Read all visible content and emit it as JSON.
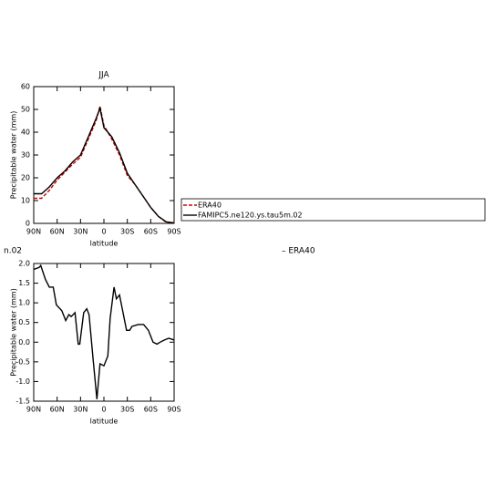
{
  "chart_data": [
    {
      "type": "line",
      "title": "JJA",
      "xlabel": "latitude",
      "ylabel": "Precipitable water (mm)",
      "xlim": [
        90,
        -90
      ],
      "xticks": [
        {
          "value": 90,
          "label": "90N"
        },
        {
          "value": 60,
          "label": "60N"
        },
        {
          "value": 30,
          "label": "30N"
        },
        0,
        {
          "value": -30,
          "label": "30S"
        },
        {
          "value": -60,
          "label": "60S"
        },
        {
          "value": -90,
          "label": "90S"
        }
      ],
      "ylim": [
        0,
        60
      ],
      "yticks": [
        0,
        10,
        20,
        30,
        40,
        50,
        60
      ],
      "x": [
        90,
        80,
        70,
        60,
        50,
        40,
        30,
        20,
        10,
        5,
        0,
        -5,
        -10,
        -20,
        -30,
        -40,
        -50,
        -60,
        -70,
        -80,
        -90
      ],
      "series": [
        {
          "name": "ERA40",
          "color": "#d00000",
          "dash": "4,2",
          "values": [
            11,
            11,
            14.5,
            19,
            22.5,
            26,
            29,
            37,
            45,
            51.5,
            43,
            40,
            37,
            30,
            21,
            17,
            12,
            7,
            3,
            0.5,
            0.2
          ]
        },
        {
          "name": "FAMIPC5.ne120.ys.tau5m.02",
          "color": "#000000",
          "values": [
            13,
            13,
            16,
            20,
            23,
            27,
            30,
            38,
            46,
            50.5,
            42,
            40,
            38,
            31,
            22,
            17,
            12,
            7,
            3,
            0.7,
            0.2
          ]
        }
      ]
    },
    {
      "type": "line",
      "xlabel": "latitude",
      "ylabel": "Precipitable water (mm)",
      "annotations": [
        "n.02",
        "– ERA40"
      ],
      "xlim": [
        90,
        -90
      ],
      "xticks": [
        {
          "value": 90,
          "label": "90N"
        },
        {
          "value": 60,
          "label": "60N"
        },
        {
          "value": 30,
          "label": "30N"
        },
        0,
        {
          "value": -30,
          "label": "30S"
        },
        {
          "value": -60,
          "label": "60S"
        },
        {
          "value": -90,
          "label": "90S"
        }
      ],
      "ylim": [
        -1.5,
        2.0
      ],
      "yticks": [
        {
          "value": -1.5,
          "label": "-1.5"
        },
        {
          "value": -1.0,
          "label": "-1.0"
        },
        {
          "value": -0.5,
          "label": "-0.5"
        },
        {
          "value": 0,
          "label": "0.0"
        },
        {
          "value": 0.5,
          "label": "0.5"
        },
        {
          "value": 1.0,
          "label": "1.0"
        },
        {
          "value": 1.5,
          "label": "1.5"
        },
        {
          "value": 2.0,
          "label": "2.0"
        }
      ],
      "x": [
        90,
        83,
        81,
        75,
        70,
        65,
        61,
        54,
        49,
        45,
        42,
        37,
        33,
        31,
        26,
        22,
        19,
        14,
        9,
        5,
        0,
        -5,
        -8,
        -13,
        -16,
        -20,
        -23,
        -29,
        -33,
        -36,
        -44,
        -51,
        -57,
        -63,
        -68,
        -72,
        -77,
        -83,
        -88,
        -90
      ],
      "series": [
        {
          "color": "#000000",
          "values": [
            1.85,
            1.9,
            1.95,
            1.6,
            1.4,
            1.4,
            0.95,
            0.8,
            0.55,
            0.7,
            0.65,
            0.75,
            -0.05,
            -0.05,
            0.75,
            0.85,
            0.7,
            -0.4,
            -1.45,
            -0.55,
            -0.6,
            -0.35,
            0.6,
            1.4,
            1.1,
            1.2,
            0.9,
            0.3,
            0.3,
            0.4,
            0.45,
            0.45,
            0.3,
            0.0,
            -0.05,
            0.0,
            0.05,
            0.1,
            0.07,
            0.05
          ]
        }
      ]
    }
  ]
}
